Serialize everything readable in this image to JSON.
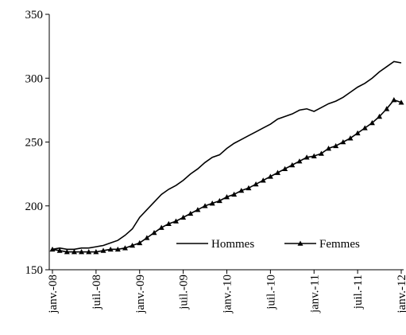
{
  "chart_data": {
    "type": "line",
    "categories": [
      "janv.-08",
      null,
      null,
      null,
      null,
      null,
      "juil.-08",
      null,
      null,
      null,
      null,
      null,
      "janv.-09",
      null,
      null,
      null,
      null,
      null,
      "juil.-09",
      null,
      null,
      null,
      null,
      null,
      "janv.-10",
      null,
      null,
      null,
      null,
      null,
      "juil.-10",
      null,
      null,
      null,
      null,
      null,
      "janv.-11",
      null,
      null,
      null,
      null,
      null,
      "juil.-11",
      null,
      null,
      null,
      null,
      null,
      "janv.-12"
    ],
    "series": [
      {
        "name": "Hommes",
        "color": "#000000",
        "marker": "none",
        "values": [
          166,
          167,
          166,
          166,
          167,
          167,
          168,
          169,
          171,
          173,
          177,
          182,
          191,
          197,
          203,
          209,
          213,
          216,
          220,
          225,
          229,
          234,
          238,
          240,
          245,
          249,
          252,
          255,
          258,
          261,
          264,
          268,
          270,
          272,
          275,
          276,
          274,
          277,
          280,
          282,
          285,
          289,
          293,
          296,
          300,
          305,
          309,
          313,
          312
        ]
      },
      {
        "name": "Femmes",
        "color": "#000000",
        "marker": "triangle",
        "values": [
          166,
          165,
          164,
          164,
          164,
          164,
          164,
          165,
          166,
          166,
          167,
          169,
          171,
          175,
          179,
          183,
          186,
          188,
          191,
          194,
          197,
          200,
          202,
          204,
          207,
          209,
          212,
          214,
          217,
          220,
          223,
          226,
          229,
          232,
          235,
          238,
          239,
          241,
          245,
          247,
          250,
          253,
          257,
          261,
          265,
          270,
          276,
          283,
          281
        ]
      }
    ],
    "ylim": [
      150,
      350
    ],
    "yticks": [
      150,
      200,
      250,
      300,
      350
    ],
    "legend": "bottom-right"
  }
}
